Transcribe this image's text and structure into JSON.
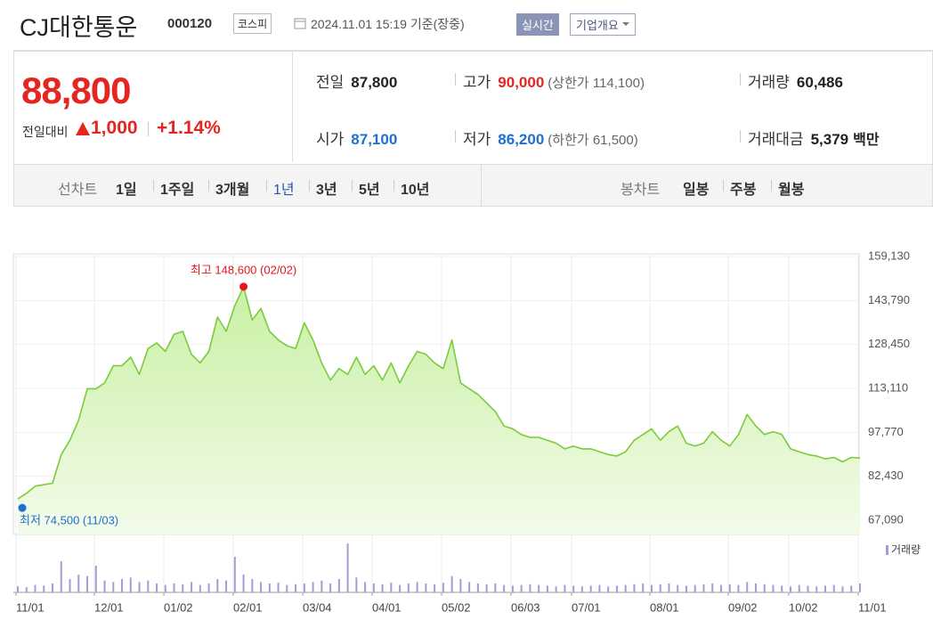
{
  "header": {
    "title": "CJ대한통운",
    "code": "000120",
    "market": "코스피",
    "timestamp": "2024.11.01 15:19 기준(장중)",
    "realtime": "실시간",
    "company": "기업개요"
  },
  "quote": {
    "price": "88,800",
    "change_label": "전일대비",
    "change": "1,000",
    "change_pct": "+1.14%",
    "stats": [
      {
        "label": "전일",
        "value": "87,800"
      },
      {
        "label": "고가",
        "value": "90,000",
        "sub": "(상한가 114,100)"
      },
      {
        "label": "거래량",
        "value": "60,486"
      },
      {
        "label": "시가",
        "value": "87,100"
      },
      {
        "label": "저가",
        "value": "86,200",
        "sub": "(하한가 61,500)"
      },
      {
        "label": "거래대금",
        "value": "5,379",
        "unit": "백만"
      }
    ]
  },
  "tabs": {
    "line_label": "선차트",
    "line_items": [
      "1일",
      "1주일",
      "3개월",
      "1년",
      "3년",
      "5년",
      "10년"
    ],
    "candle_label": "봉차트",
    "candle_items": [
      "일봉",
      "주봉",
      "월봉"
    ]
  },
  "chart_data": {
    "type": "line",
    "categories": [
      "11/01",
      null,
      null,
      null,
      null,
      null,
      null,
      null,
      null,
      "12/01",
      null,
      null,
      null,
      null,
      null,
      null,
      null,
      "01/02",
      null,
      null,
      null,
      null,
      null,
      null,
      null,
      "02/01",
      null,
      null,
      null,
      null,
      null,
      null,
      null,
      "03/04",
      null,
      null,
      null,
      null,
      null,
      null,
      null,
      "04/01",
      null,
      null,
      null,
      null,
      null,
      null,
      null,
      "05/02",
      null,
      null,
      null,
      null,
      null,
      null,
      null,
      "06/03",
      null,
      null,
      null,
      null,
      null,
      null,
      "07/01",
      null,
      null,
      null,
      null,
      null,
      null,
      null,
      null,
      "08/01",
      null,
      null,
      null,
      null,
      null,
      null,
      null,
      null,
      "09/02",
      null,
      null,
      null,
      null,
      null,
      null,
      "10/02",
      null,
      null,
      null,
      null,
      null,
      null,
      null,
      "11/01"
    ],
    "series": [
      {
        "color": "#7acc3a",
        "values": [
          74500,
          76500,
          79000,
          79500,
          80000,
          90000,
          95000,
          102000,
          113000,
          113000,
          115000,
          121000,
          121000,
          124000,
          118000,
          127000,
          129000,
          126000,
          132000,
          133000,
          125000,
          122000,
          126000,
          138000,
          133000,
          142000,
          148600,
          137000,
          141000,
          133000,
          130000,
          128000,
          127000,
          136000,
          130000,
          122000,
          116000,
          120000,
          118000,
          124000,
          118000,
          121000,
          116000,
          122000,
          115000,
          121000,
          126000,
          125000,
          122000,
          120000,
          130000,
          115000,
          113000,
          111000,
          108000,
          105000,
          100000,
          99000,
          97000,
          96000,
          96000,
          95000,
          94000,
          92000,
          93000,
          92000,
          92000,
          91000,
          90000,
          89500,
          91000,
          95000,
          97000,
          99000,
          95000,
          98000,
          100000,
          94000,
          93000,
          94000,
          98000,
          95000,
          93000,
          97000,
          104000,
          100000,
          97000,
          98000,
          97000,
          92000,
          91000,
          90000,
          89500,
          88500,
          89000,
          87500,
          89000,
          88800
        ]
      }
    ],
    "volume": {
      "name": "거래량",
      "color": "#a99ad6",
      "values": [
        40000,
        35000,
        50000,
        45000,
        60000,
        210000,
        90000,
        120000,
        110000,
        180000,
        80000,
        70000,
        90000,
        100000,
        70000,
        80000,
        60000,
        50000,
        60000,
        55000,
        70000,
        50000,
        60000,
        90000,
        80000,
        240000,
        120000,
        90000,
        70000,
        60000,
        65000,
        50000,
        55000,
        60000,
        70000,
        80000,
        60000,
        90000,
        330000,
        100000,
        70000,
        60000,
        55000,
        65000,
        50000,
        60000,
        70000,
        60000,
        55000,
        65000,
        110000,
        90000,
        70000,
        60000,
        55000,
        60000,
        50000,
        45000,
        50000,
        55000,
        50000,
        45000,
        40000,
        50000,
        45000,
        40000,
        45000,
        50000,
        40000,
        45000,
        50000,
        55000,
        60000,
        50000,
        55000,
        60000,
        50000,
        45000,
        50000,
        55000,
        60000,
        50000,
        55000,
        50000,
        70000,
        60000,
        55000,
        50000,
        45000,
        40000,
        50000,
        45000,
        40000,
        45000,
        50000,
        40000,
        45000,
        60486
      ]
    },
    "annotations": {
      "high": "최고 148,600 (02/02)",
      "low": "최저 74,500 (11/03)"
    },
    "high_color": "#e8141c",
    "low_color": "#1f6fd1",
    "ylim": [
      67090,
      159130
    ],
    "yticks": [
      {
        "value": 67090,
        "label": "67,090"
      },
      {
        "value": 82430,
        "label": "82,430"
      },
      {
        "value": 97770,
        "label": "97,770"
      },
      {
        "value": 113110,
        "label": "113,110"
      },
      {
        "value": 128450,
        "label": "128,450"
      },
      {
        "value": 143790,
        "label": "143,790"
      },
      {
        "value": 159130,
        "label": "159,130"
      }
    ],
    "grid": true
  }
}
